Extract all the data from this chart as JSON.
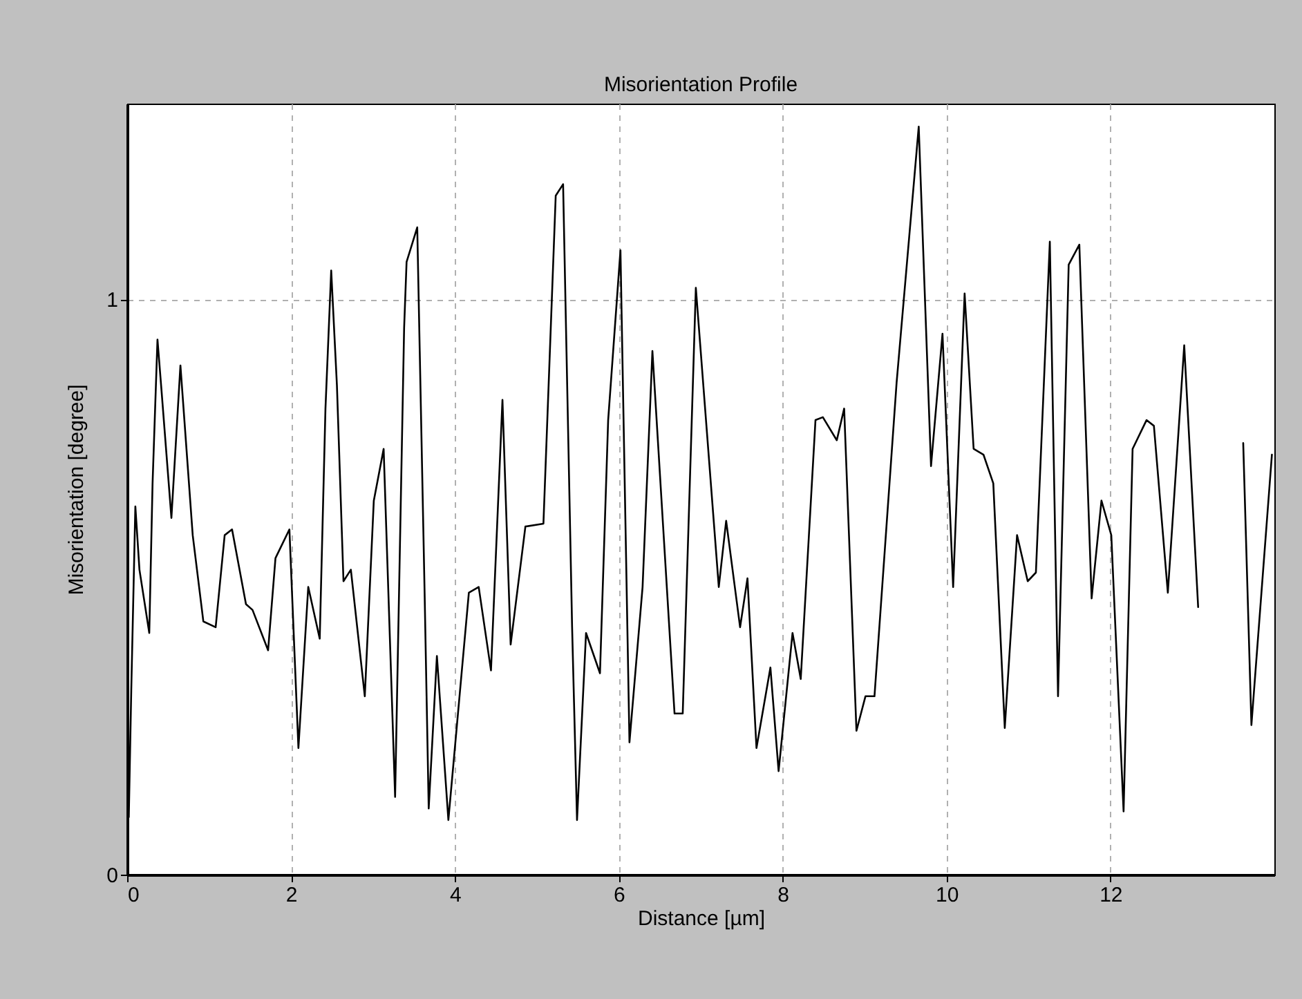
{
  "chart_data": {
    "type": "line",
    "title": "Misorientation Profile",
    "xlabel": "Distance [µm]",
    "ylabel": "Misorientation [degree]",
    "xlim": [
      0,
      14
    ],
    "ylim": [
      0,
      1.34
    ],
    "xticks": [
      0,
      2,
      4,
      6,
      8,
      10,
      12
    ],
    "yticks": [
      0,
      1
    ],
    "grid": true,
    "line_style": "solid",
    "marker": "none",
    "series": [
      {
        "color": "#000000",
        "x": [
          0.02,
          0.05,
          0.1,
          0.15,
          0.27,
          0.31,
          0.37,
          0.42,
          0.54,
          0.65,
          0.8,
          0.93,
          1.08,
          1.19,
          1.28,
          1.45,
          1.53,
          1.72,
          1.81,
          1.98,
          2.09,
          2.21,
          2.35,
          2.42,
          2.49,
          2.56,
          2.64,
          2.73,
          2.9,
          3.01,
          3.13,
          3.27,
          3.38,
          3.41,
          3.54,
          3.63,
          3.68,
          3.78,
          3.92,
          4.17,
          4.29,
          4.44,
          4.58,
          4.68,
          4.86,
          5.08,
          5.23,
          5.32,
          5.43,
          5.49,
          5.6,
          5.77,
          5.87,
          6.02,
          6.13,
          6.29,
          6.41,
          6.68,
          6.78,
          6.94,
          7.22,
          7.31,
          7.48,
          7.57,
          7.68,
          7.85,
          7.95,
          8.12,
          8.22,
          8.4,
          8.49,
          8.66,
          8.75,
          8.9,
          9.01,
          9.12,
          9.39,
          9.66,
          9.81,
          9.95,
          10.08,
          10.22,
          10.33,
          10.45,
          10.57,
          10.71,
          10.86,
          10.99,
          11.09,
          11.26,
          11.36,
          11.49,
          11.62,
          11.77,
          11.89,
          12.01,
          12.16,
          12.27,
          12.44,
          12.53,
          12.7,
          12.9,
          13.07,
          13.34,
          13.45,
          13.62,
          13.72,
          13.97
        ],
        "values": [
          0.1,
          0.32,
          0.64,
          0.53,
          0.42,
          0.68,
          0.93,
          0.84,
          0.62,
          0.885,
          0.59,
          0.44,
          0.43,
          0.59,
          0.6,
          0.47,
          0.46,
          0.39,
          0.55,
          0.6,
          0.22,
          0.5,
          0.41,
          0.81,
          1.05,
          0.85,
          0.51,
          0.53,
          0.31,
          0.65,
          0.74,
          0.135,
          0.95,
          1.065,
          1.125,
          0.49,
          0.115,
          0.38,
          0.095,
          0.49,
          0.5,
          0.355,
          0.825,
          0.4,
          0.605,
          0.61,
          1.18,
          1.2,
          0.43,
          0.095,
          0.42,
          0.35,
          0.79,
          1.085,
          0.23,
          0.5,
          0.91,
          0.28,
          0.28,
          1.02,
          0.5,
          0.615,
          0.43,
          0.515,
          0.22,
          0.36,
          0.18,
          0.42,
          0.34,
          0.79,
          0.795,
          0.755,
          0.81,
          0.25,
          0.31,
          0.31,
          0.855,
          1.3,
          0.71,
          0.94,
          0.5,
          1.01,
          0.74,
          0.73,
          0.68,
          0.255,
          0.59,
          0.51,
          0.525,
          1.1,
          0.31,
          1.06,
          1.095,
          0.48,
          0.65,
          0.59,
          0.11,
          0.74,
          0.79,
          0.78,
          0.49,
          0.92,
          0.465,
          null,
          null,
          0.75,
          0.26,
          0.73
        ]
      }
    ]
  }
}
